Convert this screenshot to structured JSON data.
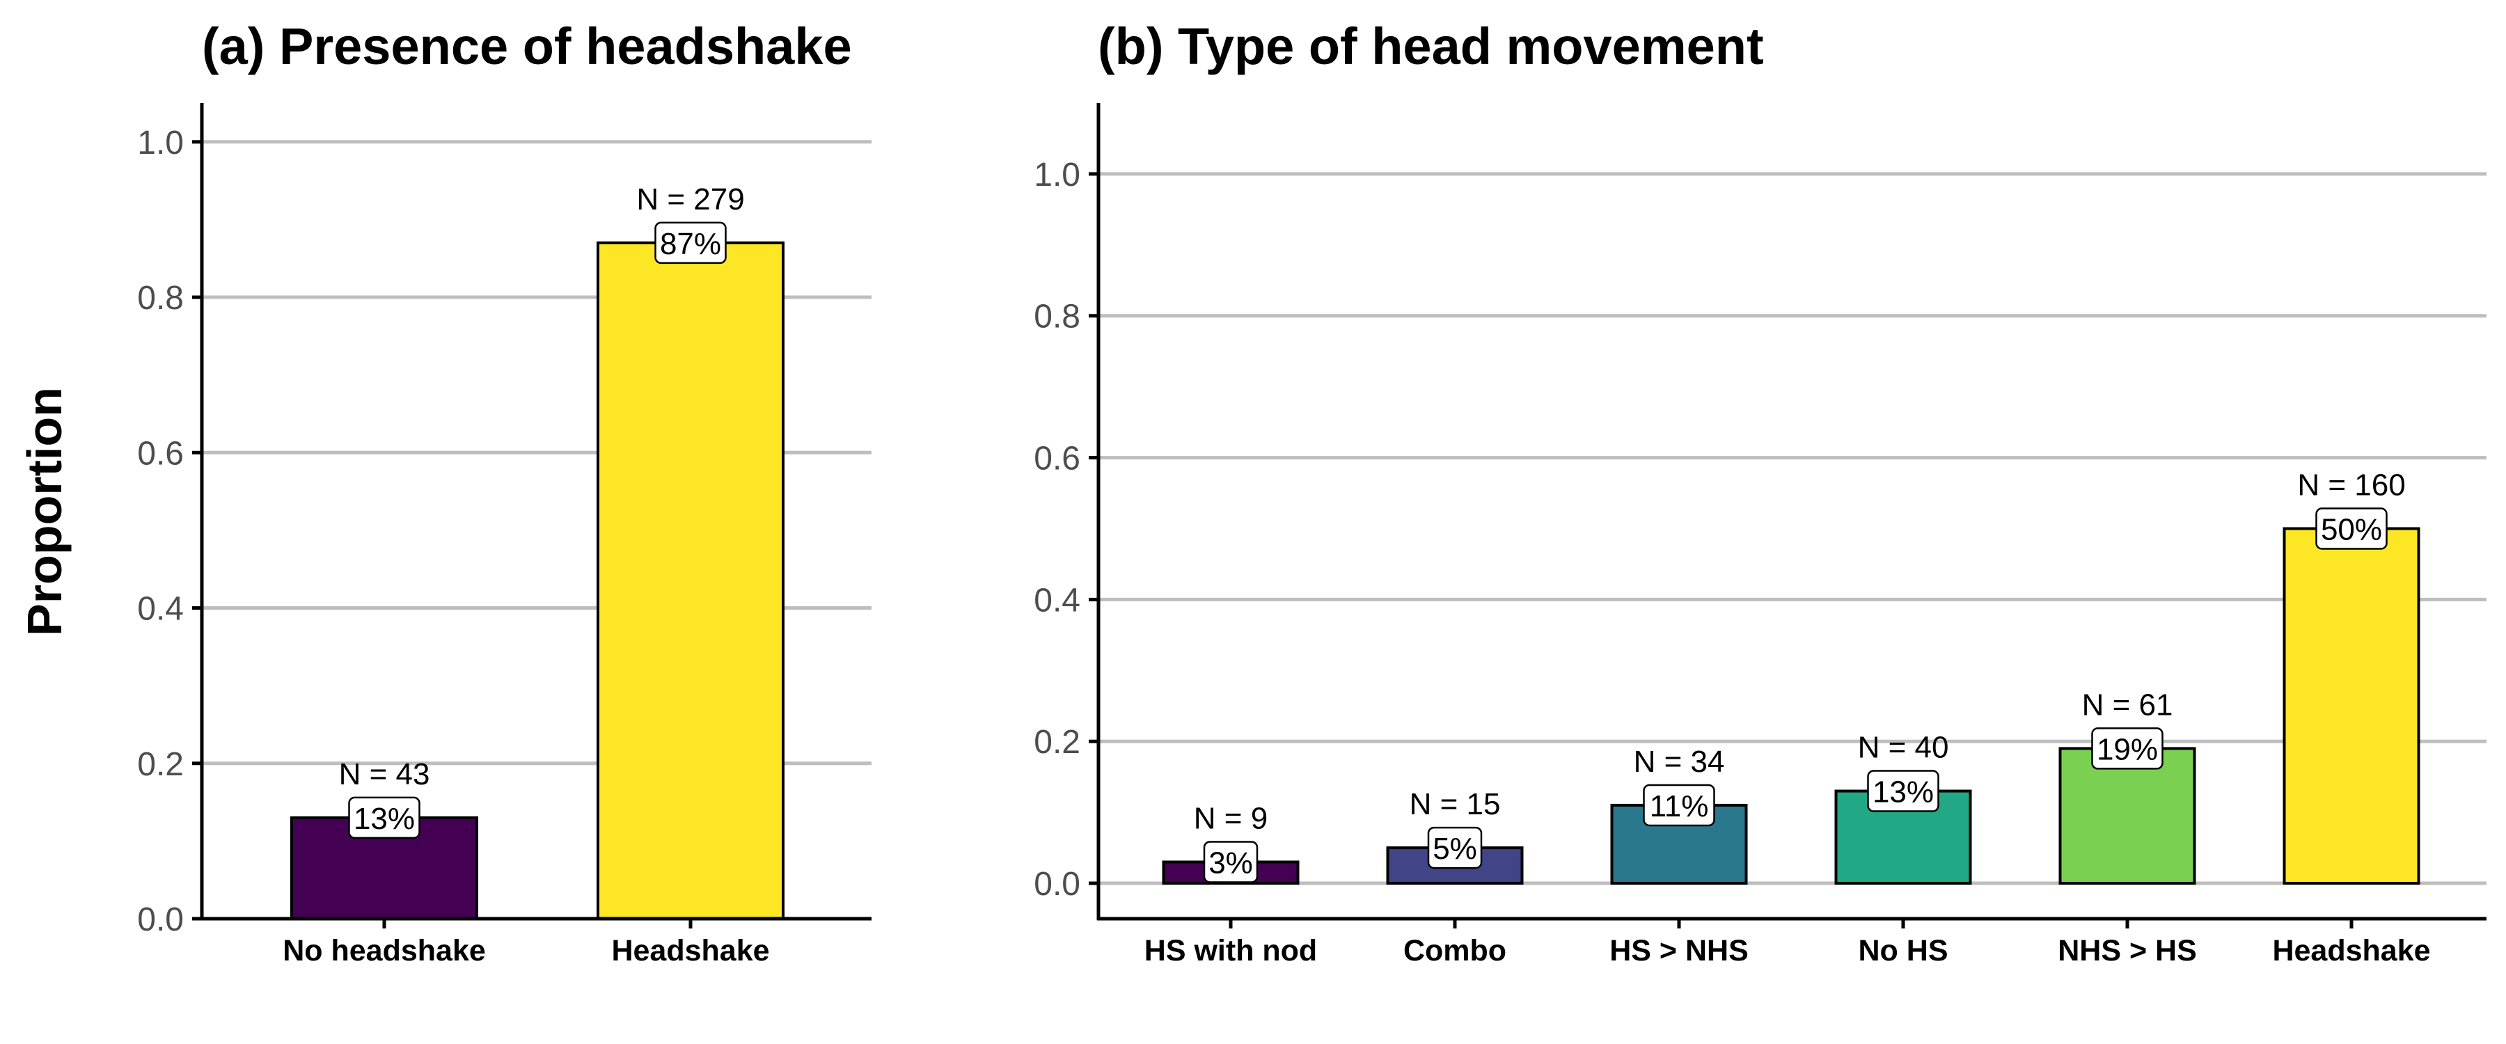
{
  "y_axis_label": "Proportion",
  "chart_data": [
    {
      "type": "bar",
      "title": "(a) Presence of headshake",
      "xlabel": "",
      "ylabel": "Proportion",
      "ylim": [
        0,
        1.05
      ],
      "yticks": [
        0.0,
        0.2,
        0.4,
        0.6,
        0.8,
        1.0
      ],
      "ytick_labels": [
        "0.0",
        "0.2",
        "0.4",
        "0.6",
        "0.8",
        "1.0"
      ],
      "grid": true,
      "categories": [
        "No headshake",
        "Headshake"
      ],
      "values": [
        0.13,
        0.87
      ],
      "counts": [
        "N = 43",
        "N = 279"
      ],
      "percent_labels": [
        "13%",
        "87%"
      ],
      "colors": [
        "#440154",
        "#fde725"
      ]
    },
    {
      "type": "bar",
      "title": "(b) Type of head movement",
      "xlabel": "",
      "ylabel": "",
      "ylim": [
        -0.05,
        1.1
      ],
      "yticks": [
        0.0,
        0.2,
        0.4,
        0.6,
        0.8,
        1.0
      ],
      "ytick_labels": [
        "0.0",
        "0.2",
        "0.4",
        "0.6",
        "0.8",
        "1.0"
      ],
      "grid": true,
      "categories": [
        "HS with nod",
        "Combo",
        "HS > NHS",
        "No HS",
        "NHS > HS",
        "Headshake"
      ],
      "values": [
        0.03,
        0.05,
        0.11,
        0.13,
        0.19,
        0.5
      ],
      "counts": [
        "N = 9",
        "N = 15",
        "N = 34",
        "N = 40",
        "N = 61",
        "N = 160"
      ],
      "percent_labels": [
        "3%",
        "5%",
        "11%",
        "13%",
        "19%",
        "50%"
      ],
      "colors": [
        "#440154",
        "#414487",
        "#2a788e",
        "#22a884",
        "#7ad151",
        "#fde725"
      ]
    }
  ]
}
